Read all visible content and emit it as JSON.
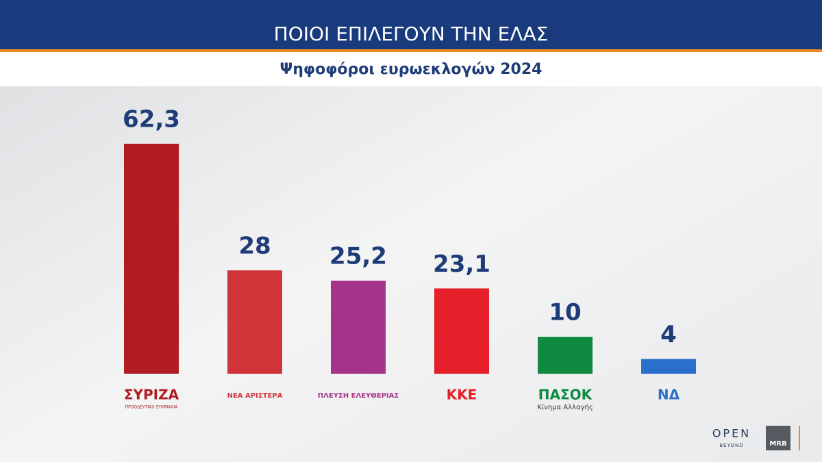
{
  "chart_data": {
    "type": "bar",
    "title": "ΠΟΙΟΙ ΕΠΙΛΕΓΟΥΝ ΤΗΝ ΕΛΑΣ",
    "subtitle": "Ψηφοφόροι ευρωεκλογών 2024",
    "categories": [
      "ΣΥΡΙΖΑ",
      "ΝΕΑ ΑΡΙΣΤΕΡΑ",
      "ΠΛΕΥΣΗ ΕΛΕΥΘΕΡΙΑΣ",
      "ΚΚΕ",
      "ΠΑΣΟΚ",
      "ΝΔ"
    ],
    "category_subtitles": [
      "ΠΡΟΟΔΕΥΤΙΚΗ ΣΥΜΜΑΧΙΑ",
      null,
      null,
      null,
      "Κίνημα Αλλαγής",
      null
    ],
    "values": [
      62.3,
      28,
      25.2,
      23.1,
      10,
      4
    ],
    "value_labels": [
      "62,3",
      "28",
      "25,2",
      "23,1",
      "10",
      "4"
    ],
    "colors": [
      "#b01c22",
      "#d13438",
      "#a6338a",
      "#e5202a",
      "#0f8a40",
      "#2a6fcb"
    ]
  },
  "branding": {
    "channel": "OPEN",
    "channel_sub": "BEYOND",
    "pollster": "MRB"
  }
}
